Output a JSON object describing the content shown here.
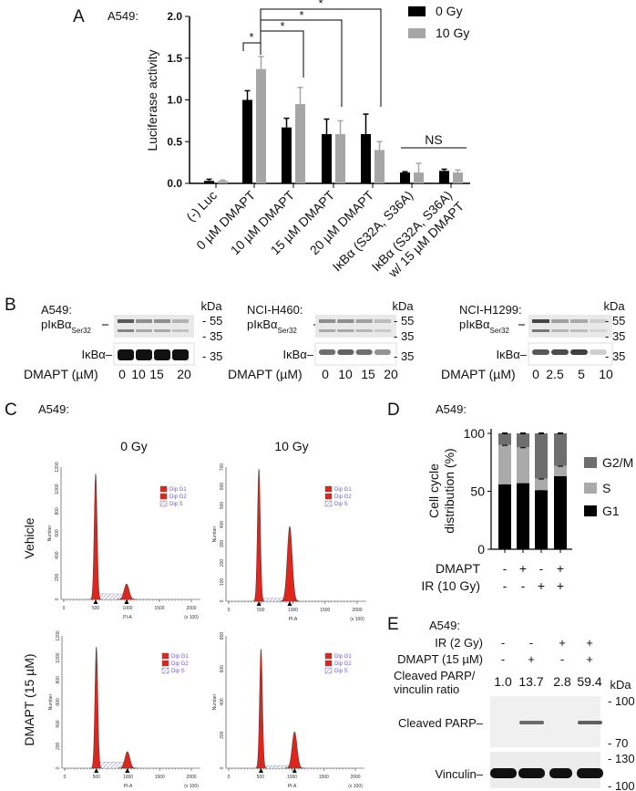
{
  "panels": {
    "a": "A",
    "b": "B",
    "c": "C",
    "d": "D",
    "e": "E"
  },
  "cell_line": "A549:",
  "chart_data": [
    {
      "panel": "A",
      "type": "bar",
      "title": "A549:",
      "ylabel": "Luciferase activity",
      "xlabel": "",
      "ylim": [
        0,
        2.0
      ],
      "yticks": [
        "0.0",
        "0.5",
        "1.0",
        "1.5",
        "2.0"
      ],
      "categories": [
        "(-) Luc",
        "0 µM DMAPT",
        "10 µM DMAPT",
        "15 µM DMAPT",
        "20 µM DMAPT",
        "IκBα (S32A, S36A)",
        "IκBα (S32A, S36A)"
      ],
      "category_line2": [
        "",
        "",
        "",
        "",
        "",
        "",
        "w/ 15 µM DMAPT"
      ],
      "series": [
        {
          "name": "0 Gy",
          "color": "#000000",
          "values": [
            0.03,
            1.0,
            0.67,
            0.59,
            0.59,
            0.13,
            0.15
          ],
          "errors": [
            0.02,
            0.11,
            0.11,
            0.18,
            0.24,
            0.01,
            0.02
          ]
        },
        {
          "name": "10 Gy",
          "color": "#a6a6a6",
          "values": [
            0.03,
            1.37,
            0.95,
            0.59,
            0.4,
            0.13,
            0.13
          ],
          "errors": [
            0.01,
            0.15,
            0.2,
            0.16,
            0.1,
            0.11,
            0.03
          ]
        }
      ],
      "legend": "top-right",
      "annotations": {
        "star": "*",
        "ns": "NS"
      }
    },
    {
      "panel": "D",
      "type": "bar",
      "stacked": true,
      "title": "A549:",
      "ylabel_line1": "Cell cycle",
      "ylabel_line2": "distribution (%)",
      "ylim": [
        0,
        100
      ],
      "yticks": [
        "0",
        "50",
        "100"
      ],
      "series": [
        {
          "name": "G1",
          "color": "#000000",
          "values": [
            56,
            57,
            51,
            63
          ]
        },
        {
          "name": "S",
          "color": "#aaaaaa",
          "values": [
            34,
            31,
            10,
            9
          ]
        },
        {
          "name": "G2/M",
          "color": "#6e6e6e",
          "values": [
            10,
            12,
            39,
            28
          ]
        }
      ],
      "legend": "right",
      "conditions": {
        "rows": [
          {
            "label": "DMAPT",
            "values": [
              "-",
              "+",
              "-",
              "+"
            ]
          },
          {
            "label": "IR (10 Gy)",
            "values": [
              "-",
              "-",
              "+",
              "+"
            ]
          }
        ]
      }
    },
    {
      "panel": "C",
      "type": "area",
      "title": "A549:",
      "column_labels": [
        "0 Gy",
        "10 Gy"
      ],
      "row_labels": [
        "Vehicle",
        "DMAPT (15 µM)"
      ],
      "xlabel": "PI-A",
      "x_unit": "(x 100)",
      "xticks": [
        "0",
        "500",
        "1000",
        "1500",
        "2000"
      ],
      "ylabel": "Number",
      "legend": [
        "Dip G1",
        "Dip G2",
        "Dip S"
      ],
      "fill_color": "#e0261c",
      "histograms": [
        {
          "ymax": 1200,
          "yticks": [
            "0",
            "200",
            "400",
            "600",
            "800",
            "1000",
            "1200"
          ],
          "g1_pi": 500,
          "g1_count": 1140,
          "g2_pi": 985,
          "g2_count": 140,
          "s_level": 50
        },
        {
          "ymax": 700,
          "yticks": [
            "0",
            "100",
            "200",
            "300",
            "400",
            "500",
            "600",
            "700"
          ],
          "g1_pi": 470,
          "g1_count": 690,
          "g2_pi": 950,
          "g2_count": 390,
          "s_level": 15
        },
        {
          "ymax": 1200,
          "yticks": [
            "0",
            "200",
            "400",
            "600",
            "800",
            "1000",
            "1200"
          ],
          "g1_pi": 500,
          "g1_count": 1100,
          "g2_pi": 990,
          "g2_count": 150,
          "s_level": 55
        },
        {
          "ymax": 800,
          "yticks": [
            "0",
            "200",
            "400",
            "600",
            "800"
          ],
          "g1_pi": 510,
          "g1_count": 720,
          "g2_pi": 1040,
          "g2_count": 220,
          "s_level": 15
        }
      ]
    }
  ],
  "panel_b": {
    "blots": [
      {
        "cell_line": "A549:",
        "doses": [
          "0",
          "10",
          "15",
          "20"
        ]
      },
      {
        "cell_line": "NCI-H460:",
        "doses": [
          "0",
          "10",
          "15",
          "20"
        ]
      },
      {
        "cell_line": "NCI-H1299:",
        "doses": [
          "0",
          "2.5",
          "5",
          "10"
        ]
      }
    ],
    "p_label": "pIκBα",
    "p_sub": "Ser32",
    "total_label": "IκBα–",
    "dose_label": "DMAPT (µM)",
    "kda": "kDa",
    "m55": "- 55",
    "m35": "- 35"
  },
  "panel_e": {
    "title": "A549:",
    "ir_label": "IR (2 Gy)",
    "ir": [
      "-",
      "-",
      "+",
      "+"
    ],
    "dmapt_label": "DMAPT (15 µM)",
    "dmapt": [
      "-",
      "+",
      "-",
      "+"
    ],
    "ratio_label_1": "Cleaved PARP/",
    "ratio_label_2": "vinculin ratio",
    "ratios": [
      "1.0",
      "13.7",
      "2.8",
      "59.4"
    ],
    "kda": "kDa",
    "parp_label": "Cleaved PARP–",
    "vinculin_label": "Vinculin–",
    "m100": "- 100",
    "m70": "- 70",
    "m130": "- 130",
    "m100b": "- 100"
  }
}
